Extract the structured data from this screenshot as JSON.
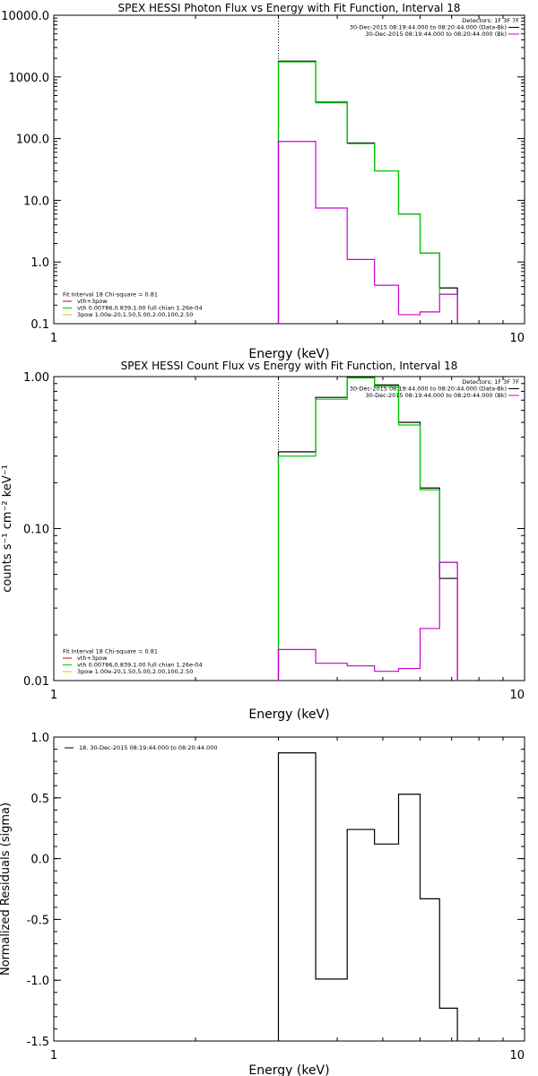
{
  "chart_data": [
    {
      "type": "line",
      "title": "SPEX HESSI Photon Flux vs Energy with Fit Function, Interval 18",
      "xlabel": "Energy (keV)",
      "ylabel": "",
      "xscale": "log",
      "yscale": "log",
      "xlim": [
        1,
        10
      ],
      "ylim": [
        0.1,
        10000
      ],
      "xticks": [
        "1",
        "10"
      ],
      "yticks": [
        "0.1",
        "1.0",
        "10.0",
        "100.0",
        "1000.0",
        "10000.0"
      ],
      "grid": false,
      "vline_x": 3.0,
      "legend_top": {
        "placement": "top-right",
        "header": "Detectors: 1F 3F 7F",
        "items": [
          {
            "label": "30-Dec-2015 08:19:44.000 to 08:20:44.000 (Data-Bk)",
            "color": "#000000"
          },
          {
            "label": "30-Dec-2015 08:19:44.000 to 08:20:44.000 (Bk)",
            "color": "#cc00cc"
          }
        ]
      },
      "legend_bottom": {
        "placement": "bottom-left",
        "header": "Fit Interval 18   Chi-square = 0.81",
        "items": [
          {
            "label": "vth+3pow",
            "color": "#cc0000"
          },
          {
            "label": "vth 0.00786,0.839,1.00   full chian 1.26e-04",
            "color": "#00cc00"
          },
          {
            "label": "3pow 1.00e-20,1.50,5.00,2.00,100,2.50",
            "color": "#cccc00"
          }
        ]
      },
      "bin_edges": [
        3.0,
        3.6,
        4.2,
        4.8,
        5.4,
        6.0,
        6.6,
        7.2
      ],
      "series": [
        {
          "color": "#000000",
          "values": [
            1800,
            390,
            85,
            30,
            6,
            1.4,
            0.38
          ]
        },
        {
          "color": "#00cc00",
          "values": [
            1750,
            380,
            83,
            30,
            6,
            1.4,
            0.3
          ]
        },
        {
          "color": "#cc00cc",
          "values": [
            90,
            7.5,
            1.1,
            0.42,
            0.14,
            0.155,
            0.3
          ]
        }
      ]
    },
    {
      "type": "line",
      "title": "SPEX HESSI Count Flux vs Energy with Fit Function, Interval 18",
      "xlabel": "Energy (keV)",
      "ylabel": "counts s⁻¹ cm⁻² keV⁻¹",
      "xscale": "log",
      "yscale": "log",
      "xlim": [
        1,
        10
      ],
      "ylim": [
        0.01,
        1.0
      ],
      "xticks": [
        "1",
        "10"
      ],
      "yticks": [
        "0.01",
        "0.10",
        "1.00"
      ],
      "grid": false,
      "vline_x": 3.0,
      "legend_top": {
        "placement": "top-right",
        "header": "Detectors: 1F 3F 7F",
        "items": [
          {
            "label": "30-Dec-2015 08:19:44.000 to 08:20:44.000 (Data-Bk)",
            "color": "#000000"
          },
          {
            "label": "30-Dec-2015 08:19:44.000 to 08:20:44.000 (Bk)",
            "color": "#cc00cc"
          }
        ]
      },
      "legend_bottom": {
        "placement": "bottom-left",
        "header": "Fit Interval 18   Chi-square = 0.81",
        "items": [
          {
            "label": "vth+3pow",
            "color": "#cc0000"
          },
          {
            "label": "vth 0.00786,0.839,1.00   full chian 1.26e-04",
            "color": "#00cc00"
          },
          {
            "label": "3pow 1.00e-20,1.50,5.00,2.00,100,2.50",
            "color": "#cccc00"
          }
        ]
      },
      "bin_edges": [
        3.0,
        3.6,
        4.2,
        4.8,
        5.4,
        6.0,
        6.6,
        7.2
      ],
      "series": [
        {
          "color": "#000000",
          "values": [
            0.32,
            0.73,
            0.99,
            0.88,
            0.5,
            0.185,
            0.047
          ]
        },
        {
          "color": "#00cc00",
          "values": [
            0.3,
            0.71,
            0.98,
            0.86,
            0.48,
            0.18,
            0.06
          ]
        },
        {
          "color": "#cc00cc",
          "values": [
            0.016,
            0.013,
            0.0125,
            0.0115,
            0.012,
            0.022,
            0.06
          ]
        }
      ]
    },
    {
      "type": "line",
      "title": "",
      "xlabel": "Energy (keV)",
      "ylabel": "Normalized Residuals (sigma)",
      "xscale": "log",
      "yscale": "linear",
      "xlim": [
        1,
        10
      ],
      "ylim": [
        -1.5,
        1.0
      ],
      "xticks": [
        "1",
        "10"
      ],
      "yticks": [
        "-1.5",
        "-1.0",
        "-0.5",
        "0.0",
        "0.5",
        "1.0"
      ],
      "grid": false,
      "vline_x": null,
      "legend_top": {
        "placement": "top-left",
        "header": "",
        "items": [
          {
            "label": "18. 30-Dec-2015 08:19:44.000 to 08:20:44.000",
            "color": "#000000"
          }
        ]
      },
      "legend_bottom": null,
      "bin_edges": [
        3.0,
        3.6,
        4.2,
        4.8,
        5.4,
        6.0,
        6.6,
        7.2
      ],
      "series": [
        {
          "color": "#000000",
          "values": [
            0.87,
            -0.99,
            0.24,
            0.12,
            0.53,
            -0.33,
            -1.23
          ]
        }
      ]
    }
  ]
}
